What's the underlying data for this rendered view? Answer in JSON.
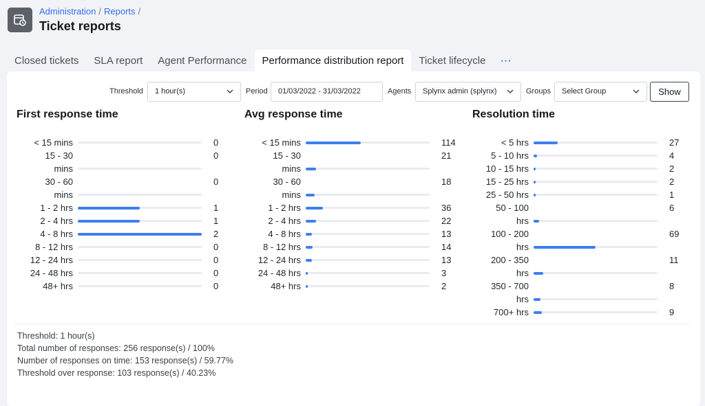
{
  "header": {
    "breadcrumb": [
      "Administration",
      "Reports"
    ],
    "title": "Ticket reports"
  },
  "tabs": [
    {
      "label": "Closed tickets"
    },
    {
      "label": "SLA report"
    },
    {
      "label": "Agent Performance"
    },
    {
      "label": "Performance distribution report",
      "active": true
    },
    {
      "label": "Ticket lifecycle"
    },
    {
      "label": "···"
    }
  ],
  "filters": {
    "threshold_label": "Threshold",
    "threshold_value": "1 hour(s)",
    "period_label": "Period",
    "period_value": "01/03/2022 - 31/03/2022",
    "agents_label": "Agents",
    "agents_value": "Splynx admin (splynx)",
    "groups_label": "Groups",
    "groups_value": "Select Group",
    "show_label": "Show"
  },
  "columns": [
    {
      "title": "First response time",
      "max": 2,
      "rows": [
        {
          "line1": "< 15 mins",
          "line2": "",
          "value": 0
        },
        {
          "line1": "15 - 30",
          "line2": "mins",
          "value": 0
        },
        {
          "line1": "30 - 60",
          "line2": "mins",
          "value": 0
        },
        {
          "line1": "1 - 2 hrs",
          "line2": "",
          "value": 1
        },
        {
          "line1": "2 - 4 hrs",
          "line2": "",
          "value": 1
        },
        {
          "line1": "4 - 8 hrs",
          "line2": "",
          "value": 2
        },
        {
          "line1": "8 - 12 hrs",
          "line2": "",
          "value": 0
        },
        {
          "line1": "12 - 24 hrs",
          "line2": "",
          "value": 0
        },
        {
          "line1": "24 - 48 hrs",
          "line2": "",
          "value": 0
        },
        {
          "line1": "48+ hrs",
          "line2": "",
          "value": 0
        }
      ]
    },
    {
      "title": "Avg response time",
      "max": 256,
      "rows": [
        {
          "line1": "< 15 mins",
          "line2": "",
          "value": 114
        },
        {
          "line1": "15 - 30",
          "line2": "mins",
          "value": 21
        },
        {
          "line1": "30 - 60",
          "line2": "mins",
          "value": 18
        },
        {
          "line1": "1 - 2 hrs",
          "line2": "",
          "value": 36
        },
        {
          "line1": "2 - 4 hrs",
          "line2": "",
          "value": 22
        },
        {
          "line1": "4 - 8 hrs",
          "line2": "",
          "value": 13
        },
        {
          "line1": "8 - 12 hrs",
          "line2": "",
          "value": 14
        },
        {
          "line1": "12 - 24 hrs",
          "line2": "",
          "value": 13
        },
        {
          "line1": "24 - 48 hrs",
          "line2": "",
          "value": 3
        },
        {
          "line1": "48+ hrs",
          "line2": "",
          "value": 2
        }
      ]
    },
    {
      "title": "Resolution time",
      "max": 138,
      "rows": [
        {
          "line1": "< 5 hrs",
          "line2": "",
          "value": 27
        },
        {
          "line1": "5 - 10 hrs",
          "line2": "",
          "value": 4
        },
        {
          "line1": "10 - 15 hrs",
          "line2": "",
          "value": 2
        },
        {
          "line1": "15 - 25 hrs",
          "line2": "",
          "value": 2
        },
        {
          "line1": "25 - 50 hrs",
          "line2": "",
          "value": 1
        },
        {
          "line1": "50 - 100",
          "line2": "hrs",
          "value": 6
        },
        {
          "line1": "100 - 200",
          "line2": "hrs",
          "value": 69
        },
        {
          "line1": "200 - 350",
          "line2": "hrs",
          "value": 11
        },
        {
          "line1": "350 - 700",
          "line2": "hrs",
          "value": 8
        },
        {
          "line1": "700+ hrs",
          "line2": "",
          "value": 9
        }
      ]
    }
  ],
  "summary": [
    "Threshold: 1 hour(s)",
    "Total number of responses: 256 response(s) / 100%",
    "Number of responses on time: 153 response(s) / 59.77%",
    "Threshold over response: 103 response(s) / 40.23%"
  ],
  "colors": {
    "accent": "#3d7fef",
    "link": "#2f6fed",
    "track": "#e9ebef"
  }
}
